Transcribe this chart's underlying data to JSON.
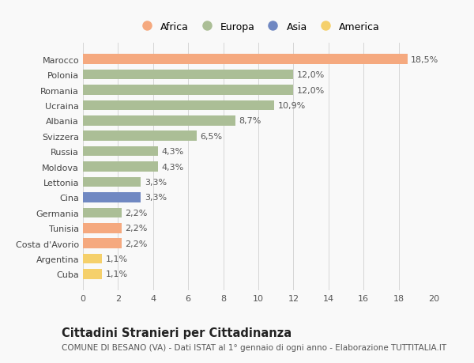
{
  "categories": [
    "Marocco",
    "Polonia",
    "Romania",
    "Ucraina",
    "Albania",
    "Svizzera",
    "Russia",
    "Moldova",
    "Lettonia",
    "Cina",
    "Germania",
    "Tunisia",
    "Costa d'Avorio",
    "Argentina",
    "Cuba"
  ],
  "values": [
    18.5,
    12.0,
    12.0,
    10.9,
    8.7,
    6.5,
    4.3,
    4.3,
    3.3,
    3.3,
    2.2,
    2.2,
    2.2,
    1.1,
    1.1
  ],
  "labels": [
    "18,5%",
    "12,0%",
    "12,0%",
    "10,9%",
    "8,7%",
    "6,5%",
    "4,3%",
    "4,3%",
    "3,3%",
    "3,3%",
    "2,2%",
    "2,2%",
    "2,2%",
    "1,1%",
    "1,1%"
  ],
  "continents": [
    "Africa",
    "Europa",
    "Europa",
    "Europa",
    "Europa",
    "Europa",
    "Europa",
    "Europa",
    "Europa",
    "Asia",
    "Europa",
    "Africa",
    "Africa",
    "America",
    "America"
  ],
  "continent_colors": {
    "Africa": "#F5A97F",
    "Europa": "#ABBE96",
    "Asia": "#7088C2",
    "America": "#F5D06B"
  },
  "legend_order": [
    "Africa",
    "Europa",
    "Asia",
    "America"
  ],
  "xlim": [
    0,
    20
  ],
  "xticks": [
    0,
    2,
    4,
    6,
    8,
    10,
    12,
    14,
    16,
    18,
    20
  ],
  "title": "Cittadini Stranieri per Cittadinanza",
  "subtitle": "COMUNE DI BESANO (VA) - Dati ISTAT al 1° gennaio di ogni anno - Elaborazione TUTTITALIA.IT",
  "background_color": "#f9f9f9",
  "grid_color": "#d5d5d5",
  "bar_height": 0.65,
  "label_fontsize": 8,
  "tick_fontsize": 8,
  "title_fontsize": 10.5,
  "subtitle_fontsize": 7.5
}
